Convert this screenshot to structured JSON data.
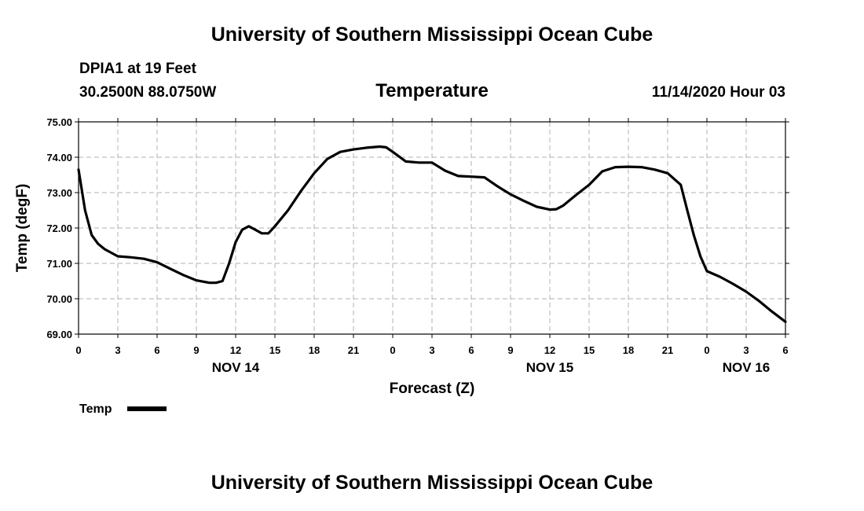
{
  "header": {
    "top_title": "University of Southern Mississippi Ocean Cube",
    "station": "DPIA1 at 19 Feet",
    "coords": "30.2500N 88.0750W",
    "subtitle": "Temperature",
    "datetime": "11/14/2020 Hour 03"
  },
  "footer": {
    "bottom_title": "University of Southern Mississippi Ocean Cube"
  },
  "legend": {
    "label": "Temp"
  },
  "colors": {
    "line": "#000000",
    "grid": "#b0b0b0"
  },
  "chart_data": {
    "type": "line",
    "title": "Temperature",
    "xlabel": "Forecast (Z)",
    "ylabel": "Temp (degF)",
    "x_unit": "hours from 0Z Nov 14",
    "xlim": [
      0,
      54
    ],
    "ylim": [
      69.0,
      75.0
    ],
    "grid": true,
    "legend_position": "bottom-left",
    "y_ticks": [
      69,
      70,
      71,
      72,
      73,
      74,
      75
    ],
    "y_tick_labels": [
      "69.00",
      "70.00",
      "71.00",
      "72.00",
      "73.00",
      "74.00",
      "75.00"
    ],
    "x_ticks": [
      0,
      3,
      6,
      9,
      12,
      15,
      18,
      21,
      24,
      27,
      30,
      33,
      36,
      39,
      42,
      45,
      48,
      51,
      54
    ],
    "x_tick_labels": [
      "0",
      "3",
      "6",
      "9",
      "12",
      "15",
      "18",
      "21",
      "0",
      "3",
      "6",
      "9",
      "12",
      "15",
      "18",
      "21",
      "0",
      "3",
      "6"
    ],
    "day_labels": [
      {
        "x": 12,
        "label": "NOV 14"
      },
      {
        "x": 36,
        "label": "NOV 15"
      },
      {
        "x": 51,
        "label": "NOV 16"
      }
    ],
    "series": [
      {
        "name": "Temp",
        "x": [
          0,
          0.5,
          1,
          1.5,
          2,
          3,
          4,
          5,
          6,
          7,
          8,
          9,
          10,
          10.5,
          11,
          11.5,
          12,
          12.5,
          13,
          13.5,
          14,
          14.5,
          15,
          16,
          17,
          18,
          19,
          20,
          21,
          22,
          23,
          23.5,
          24,
          25,
          26,
          27,
          28,
          29,
          30,
          31,
          32,
          33,
          34,
          35,
          36,
          36.5,
          37,
          38,
          39,
          40,
          41,
          42,
          43,
          44,
          45,
          46,
          46.5,
          47,
          47.5,
          48,
          49,
          50,
          51,
          52,
          53,
          54
        ],
        "values": [
          73.65,
          72.5,
          71.8,
          71.55,
          71.4,
          71.2,
          71.17,
          71.13,
          71.03,
          70.85,
          70.67,
          70.52,
          70.45,
          70.45,
          70.5,
          71.0,
          71.6,
          71.95,
          72.05,
          71.95,
          71.85,
          71.85,
          72.05,
          72.5,
          73.05,
          73.55,
          73.95,
          74.15,
          74.22,
          74.27,
          74.3,
          74.28,
          74.15,
          73.88,
          73.85,
          73.85,
          73.62,
          73.47,
          73.45,
          73.43,
          73.18,
          72.95,
          72.77,
          72.6,
          72.52,
          72.53,
          72.63,
          72.93,
          73.22,
          73.6,
          73.72,
          73.73,
          73.72,
          73.65,
          73.55,
          73.22,
          72.5,
          71.8,
          71.2,
          70.78,
          70.62,
          70.42,
          70.2,
          69.93,
          69.63,
          69.35
        ]
      }
    ]
  }
}
